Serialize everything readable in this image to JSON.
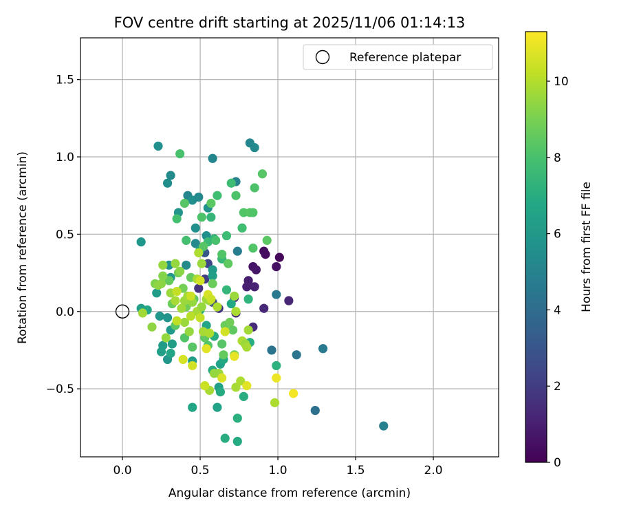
{
  "chart_data": {
    "type": "scatter",
    "title": "FOV centre drift starting at 2025/11/06 01:14:13",
    "xlabel": "Angular distance from reference (arcmin)",
    "ylabel": "Rotation from reference (arcmin)",
    "xlim": [
      -0.27,
      2.42
    ],
    "ylim": [
      -0.94,
      1.77
    ],
    "xticks": [
      0.0,
      0.5,
      1.0,
      1.5,
      2.0
    ],
    "xtick_labels": [
      "0.0",
      "0.5",
      "1.0",
      "1.5",
      "2.0"
    ],
    "yticks": [
      -0.5,
      0.0,
      0.5,
      1.0,
      1.5
    ],
    "ytick_labels": [
      "−0.5",
      "0.0",
      "0.5",
      "1.0",
      "1.5"
    ],
    "grid": true,
    "legend": {
      "label": "Reference platepar",
      "placement": "top-right"
    },
    "reference_point": {
      "x": 0.0,
      "y": 0.0
    },
    "colorbar": {
      "label": "Hours from first FF file",
      "range": [
        0,
        11.3
      ],
      "ticks": [
        0,
        2,
        4,
        6,
        8,
        10
      ],
      "tick_labels": [
        "0",
        "2",
        "4",
        "6",
        "8",
        "10"
      ],
      "colormap": "viridis"
    },
    "points": [
      {
        "x": 1.01,
        "y": 0.35,
        "h": 0.2
      },
      {
        "x": 0.92,
        "y": 0.37,
        "h": 0.3
      },
      {
        "x": 0.91,
        "y": 0.39,
        "h": 0.4
      },
      {
        "x": 0.84,
        "y": 0.29,
        "h": 0.6
      },
      {
        "x": 0.86,
        "y": 0.27,
        "h": 0.7
      },
      {
        "x": 0.81,
        "y": 0.2,
        "h": 0.9
      },
      {
        "x": 0.8,
        "y": 0.16,
        "h": 1.0
      },
      {
        "x": 0.85,
        "y": 0.16,
        "h": 1.1
      },
      {
        "x": 0.99,
        "y": 0.29,
        "h": 0.5
      },
      {
        "x": 1.07,
        "y": 0.07,
        "h": 1.2
      },
      {
        "x": 0.91,
        "y": 0.02,
        "h": 1.3
      },
      {
        "x": 0.84,
        "y": -0.1,
        "h": 1.4
      },
      {
        "x": 0.73,
        "y": -0.01,
        "h": 1.2
      },
      {
        "x": 0.72,
        "y": 0.09,
        "h": 1.5
      },
      {
        "x": 0.62,
        "y": 0.02,
        "h": 1.8
      },
      {
        "x": 0.49,
        "y": 0.15,
        "h": 1.6
      },
      {
        "x": 0.53,
        "y": 0.21,
        "h": 2.0
      },
      {
        "x": 0.55,
        "y": 0.31,
        "h": 2.4
      },
      {
        "x": 0.53,
        "y": 0.38,
        "h": 3.0
      },
      {
        "x": 0.58,
        "y": 0.06,
        "h": 2.6
      },
      {
        "x": 0.96,
        "y": -0.25,
        "h": 4.3
      },
      {
        "x": 0.99,
        "y": 0.11,
        "h": 4.5
      },
      {
        "x": 1.12,
        "y": -0.28,
        "h": 4.4
      },
      {
        "x": 1.29,
        "y": -0.24,
        "h": 4.6
      },
      {
        "x": 1.24,
        "y": -0.64,
        "h": 4.2
      },
      {
        "x": 1.68,
        "y": -0.74,
        "h": 4.9
      },
      {
        "x": 0.74,
        "y": 0.39,
        "h": 4.8
      },
      {
        "x": 0.73,
        "y": 0.84,
        "h": 5.0
      },
      {
        "x": 0.58,
        "y": 0.99,
        "h": 5.1
      },
      {
        "x": 0.82,
        "y": 1.09,
        "h": 5.2
      },
      {
        "x": 0.85,
        "y": 1.06,
        "h": 5.3
      },
      {
        "x": 0.23,
        "y": 1.07,
        "h": 5.6
      },
      {
        "x": 0.31,
        "y": 0.88,
        "h": 5.4
      },
      {
        "x": 0.29,
        "y": 0.83,
        "h": 5.5
      },
      {
        "x": 0.42,
        "y": 0.75,
        "h": 5.2
      },
      {
        "x": 0.45,
        "y": 0.72,
        "h": 5.6
      },
      {
        "x": 0.49,
        "y": 0.74,
        "h": 5.3
      },
      {
        "x": 0.55,
        "y": 0.67,
        "h": 5.7
      },
      {
        "x": 0.36,
        "y": 0.64,
        "h": 5.8
      },
      {
        "x": 0.12,
        "y": 0.45,
        "h": 5.9
      },
      {
        "x": 0.47,
        "y": 0.54,
        "h": 5.6
      },
      {
        "x": 0.47,
        "y": 0.44,
        "h": 5.3
      },
      {
        "x": 0.54,
        "y": 0.49,
        "h": 5.6
      },
      {
        "x": 0.41,
        "y": 0.3,
        "h": 5.4
      },
      {
        "x": 0.3,
        "y": 0.3,
        "h": 5.7
      },
      {
        "x": 0.31,
        "y": 0.22,
        "h": 6.0
      },
      {
        "x": 0.5,
        "y": 0.4,
        "h": 6.2
      },
      {
        "x": 0.58,
        "y": 0.27,
        "h": 6.1
      },
      {
        "x": 0.58,
        "y": 0.23,
        "h": 6.3
      },
      {
        "x": 0.22,
        "y": 0.12,
        "h": 6.2
      },
      {
        "x": 0.12,
        "y": 0.02,
        "h": 6.4
      },
      {
        "x": 0.16,
        "y": 0.01,
        "h": 6.7
      },
      {
        "x": 0.24,
        "y": -0.03,
        "h": 5.9
      },
      {
        "x": 0.29,
        "y": -0.04,
        "h": 5.8
      },
      {
        "x": 0.31,
        "y": -0.12,
        "h": 6.1
      },
      {
        "x": 0.26,
        "y": -0.22,
        "h": 6.2
      },
      {
        "x": 0.25,
        "y": -0.26,
        "h": 6.4
      },
      {
        "x": 0.29,
        "y": -0.31,
        "h": 5.9
      },
      {
        "x": 0.31,
        "y": -0.27,
        "h": 6.6
      },
      {
        "x": 0.32,
        "y": -0.21,
        "h": 6.3
      },
      {
        "x": 0.45,
        "y": -0.32,
        "h": 6.3
      },
      {
        "x": 0.45,
        "y": -0.62,
        "h": 6.7
      },
      {
        "x": 0.61,
        "y": -0.62,
        "h": 6.5
      },
      {
        "x": 0.62,
        "y": -0.49,
        "h": 6.4
      },
      {
        "x": 0.63,
        "y": -0.52,
        "h": 6.9
      },
      {
        "x": 0.63,
        "y": -0.34,
        "h": 6.5
      },
      {
        "x": 0.65,
        "y": -0.31,
        "h": 6.8
      },
      {
        "x": 0.66,
        "y": -0.82,
        "h": 7.0
      },
      {
        "x": 0.74,
        "y": -0.84,
        "h": 6.9
      },
      {
        "x": 0.74,
        "y": -0.69,
        "h": 7.1
      },
      {
        "x": 0.58,
        "y": -0.38,
        "h": 6.9
      },
      {
        "x": 0.59,
        "y": -0.16,
        "h": 7.0
      },
      {
        "x": 0.54,
        "y": -0.09,
        "h": 6.6
      },
      {
        "x": 0.7,
        "y": 0.05,
        "h": 6.8
      },
      {
        "x": 0.5,
        "y": 0.01,
        "h": 7.2
      },
      {
        "x": 0.82,
        "y": -0.2,
        "h": 7.0
      },
      {
        "x": 0.78,
        "y": -0.55,
        "h": 7.0
      },
      {
        "x": 0.99,
        "y": -0.35,
        "h": 7.2
      },
      {
        "x": 0.81,
        "y": 0.08,
        "h": 7.3
      },
      {
        "x": 0.67,
        "y": 0.14,
        "h": 7.4
      },
      {
        "x": 0.64,
        "y": 0.34,
        "h": 7.5
      },
      {
        "x": 0.55,
        "y": 0.45,
        "h": 7.6
      },
      {
        "x": 0.59,
        "y": 0.47,
        "h": 7.3
      },
      {
        "x": 0.6,
        "y": 0.46,
        "h": 8.0
      },
      {
        "x": 0.67,
        "y": 0.49,
        "h": 7.7
      },
      {
        "x": 0.77,
        "y": 0.54,
        "h": 7.8
      },
      {
        "x": 0.41,
        "y": 0.46,
        "h": 7.9
      },
      {
        "x": 0.35,
        "y": 0.6,
        "h": 7.9
      },
      {
        "x": 0.51,
        "y": 0.61,
        "h": 8.1
      },
      {
        "x": 0.57,
        "y": 0.61,
        "h": 7.4
      },
      {
        "x": 0.37,
        "y": 1.02,
        "h": 8.0
      },
      {
        "x": 0.61,
        "y": 0.75,
        "h": 7.8
      },
      {
        "x": 0.7,
        "y": 0.83,
        "h": 7.7
      },
      {
        "x": 0.73,
        "y": 0.75,
        "h": 8.1
      },
      {
        "x": 0.78,
        "y": 0.64,
        "h": 8.2
      },
      {
        "x": 0.85,
        "y": 0.8,
        "h": 8.1
      },
      {
        "x": 0.9,
        "y": 0.89,
        "h": 8.3
      },
      {
        "x": 0.82,
        "y": 0.64,
        "h": 8.3
      },
      {
        "x": 0.84,
        "y": 0.64,
        "h": 8.2
      },
      {
        "x": 0.84,
        "y": 0.41,
        "h": 8.2
      },
      {
        "x": 0.93,
        "y": 0.46,
        "h": 8.4
      },
      {
        "x": 0.57,
        "y": 0.7,
        "h": 8.4
      },
      {
        "x": 0.4,
        "y": 0.7,
        "h": 8.3
      },
      {
        "x": 0.64,
        "y": 0.37,
        "h": 8.2
      },
      {
        "x": 0.68,
        "y": 0.31,
        "h": 8.5
      },
      {
        "x": 0.52,
        "y": 0.42,
        "h": 8.3
      },
      {
        "x": 0.58,
        "y": 0.18,
        "h": 8.7
      },
      {
        "x": 0.44,
        "y": 0.22,
        "h": 8.6
      },
      {
        "x": 0.36,
        "y": 0.25,
        "h": 8.8
      },
      {
        "x": 0.3,
        "y": 0.2,
        "h": 8.6
      },
      {
        "x": 0.39,
        "y": 0.15,
        "h": 8.9
      },
      {
        "x": 0.32,
        "y": 0.05,
        "h": 8.7
      },
      {
        "x": 0.41,
        "y": 0.03,
        "h": 8.8
      },
      {
        "x": 0.46,
        "y": 0.08,
        "h": 8.5
      },
      {
        "x": 0.34,
        "y": -0.09,
        "h": 8.4
      },
      {
        "x": 0.4,
        "y": -0.17,
        "h": 8.2
      },
      {
        "x": 0.45,
        "y": -0.23,
        "h": 8.3
      },
      {
        "x": 0.53,
        "y": -0.17,
        "h": 8.5
      },
      {
        "x": 0.55,
        "y": -0.22,
        "h": 8.2
      },
      {
        "x": 0.64,
        "y": -0.21,
        "h": 8.3
      },
      {
        "x": 0.65,
        "y": -0.28,
        "h": 8.6
      },
      {
        "x": 0.66,
        "y": -0.09,
        "h": 8.7
      },
      {
        "x": 0.69,
        "y": -0.07,
        "h": 8.8
      },
      {
        "x": 0.71,
        "y": -0.12,
        "h": 8.5
      },
      {
        "x": 0.72,
        "y": -0.28,
        "h": 8.9
      },
      {
        "x": 0.21,
        "y": 0.18,
        "h": 9.1
      },
      {
        "x": 0.25,
        "y": 0.18,
        "h": 9.3
      },
      {
        "x": 0.26,
        "y": 0.23,
        "h": 9.2
      },
      {
        "x": 0.23,
        "y": 0.17,
        "h": 9.4
      },
      {
        "x": 0.26,
        "y": 0.3,
        "h": 9.5
      },
      {
        "x": 0.34,
        "y": 0.31,
        "h": 9.5
      },
      {
        "x": 0.37,
        "y": 0.26,
        "h": 9.3
      },
      {
        "x": 0.31,
        "y": 0.12,
        "h": 9.6
      },
      {
        "x": 0.34,
        "y": 0.07,
        "h": 9.8
      },
      {
        "x": 0.38,
        "y": 0.02,
        "h": 9.7
      },
      {
        "x": 0.4,
        "y": 0.07,
        "h": 9.6
      },
      {
        "x": 0.42,
        "y": 0.1,
        "h": 9.7
      },
      {
        "x": 0.45,
        "y": 0.06,
        "h": 9.5
      },
      {
        "x": 0.48,
        "y": 0.0,
        "h": 9.8
      },
      {
        "x": 0.51,
        "y": 0.03,
        "h": 9.5
      },
      {
        "x": 0.54,
        "y": 0.08,
        "h": 9.7
      },
      {
        "x": 0.56,
        "y": 0.07,
        "h": 9.6
      },
      {
        "x": 0.61,
        "y": 0.03,
        "h": 9.9
      },
      {
        "x": 0.48,
        "y": 0.21,
        "h": 9.8
      },
      {
        "x": 0.51,
        "y": 0.31,
        "h": 9.6
      },
      {
        "x": 0.49,
        "y": 0.38,
        "h": 9.9
      },
      {
        "x": 0.19,
        "y": -0.1,
        "h": 9.4
      },
      {
        "x": 0.13,
        "y": -0.01,
        "h": 9.7
      },
      {
        "x": 0.28,
        "y": -0.17,
        "h": 9.5
      },
      {
        "x": 0.43,
        "y": -0.13,
        "h": 9.5
      },
      {
        "x": 0.4,
        "y": -0.07,
        "h": 9.6
      },
      {
        "x": 0.52,
        "y": -0.13,
        "h": 9.8
      },
      {
        "x": 0.56,
        "y": -0.14,
        "h": 9.9
      },
      {
        "x": 0.62,
        "y": -0.4,
        "h": 9.6
      },
      {
        "x": 0.59,
        "y": -0.4,
        "h": 9.5
      },
      {
        "x": 0.56,
        "y": -0.51,
        "h": 9.8
      },
      {
        "x": 0.73,
        "y": -0.49,
        "h": 9.8
      },
      {
        "x": 0.76,
        "y": -0.45,
        "h": 9.9
      },
      {
        "x": 0.77,
        "y": -0.19,
        "h": 9.9
      },
      {
        "x": 0.79,
        "y": -0.21,
        "h": 9.6
      },
      {
        "x": 0.8,
        "y": -0.23,
        "h": 9.8
      },
      {
        "x": 0.81,
        "y": -0.12,
        "h": 9.7
      },
      {
        "x": 0.72,
        "y": 0.1,
        "h": 9.6
      },
      {
        "x": 0.73,
        "y": 0.0,
        "h": 9.9
      },
      {
        "x": 0.98,
        "y": -0.59,
        "h": 9.9
      },
      {
        "x": 0.35,
        "y": 0.13,
        "h": 10.3
      },
      {
        "x": 0.44,
        "y": 0.1,
        "h": 10.4
      },
      {
        "x": 0.5,
        "y": 0.2,
        "h": 10.5
      },
      {
        "x": 0.55,
        "y": 0.11,
        "h": 10.6
      },
      {
        "x": 0.57,
        "y": 0.08,
        "h": 10.4
      },
      {
        "x": 0.35,
        "y": -0.06,
        "h": 10.2
      },
      {
        "x": 0.44,
        "y": -0.03,
        "h": 10.1
      },
      {
        "x": 0.5,
        "y": -0.04,
        "h": 10.3
      },
      {
        "x": 0.54,
        "y": -0.24,
        "h": 10.8
      },
      {
        "x": 0.39,
        "y": -0.31,
        "h": 10.6
      },
      {
        "x": 0.45,
        "y": -0.35,
        "h": 10.5
      },
      {
        "x": 0.53,
        "y": -0.48,
        "h": 10.4
      },
      {
        "x": 0.64,
        "y": -0.43,
        "h": 10.7
      },
      {
        "x": 0.66,
        "y": -0.13,
        "h": 10.5
      },
      {
        "x": 0.72,
        "y": -0.29,
        "h": 10.9
      },
      {
        "x": 0.8,
        "y": -0.48,
        "h": 10.8
      },
      {
        "x": 0.99,
        "y": -0.43,
        "h": 11.0
      },
      {
        "x": 1.1,
        "y": -0.53,
        "h": 11.1
      }
    ]
  }
}
